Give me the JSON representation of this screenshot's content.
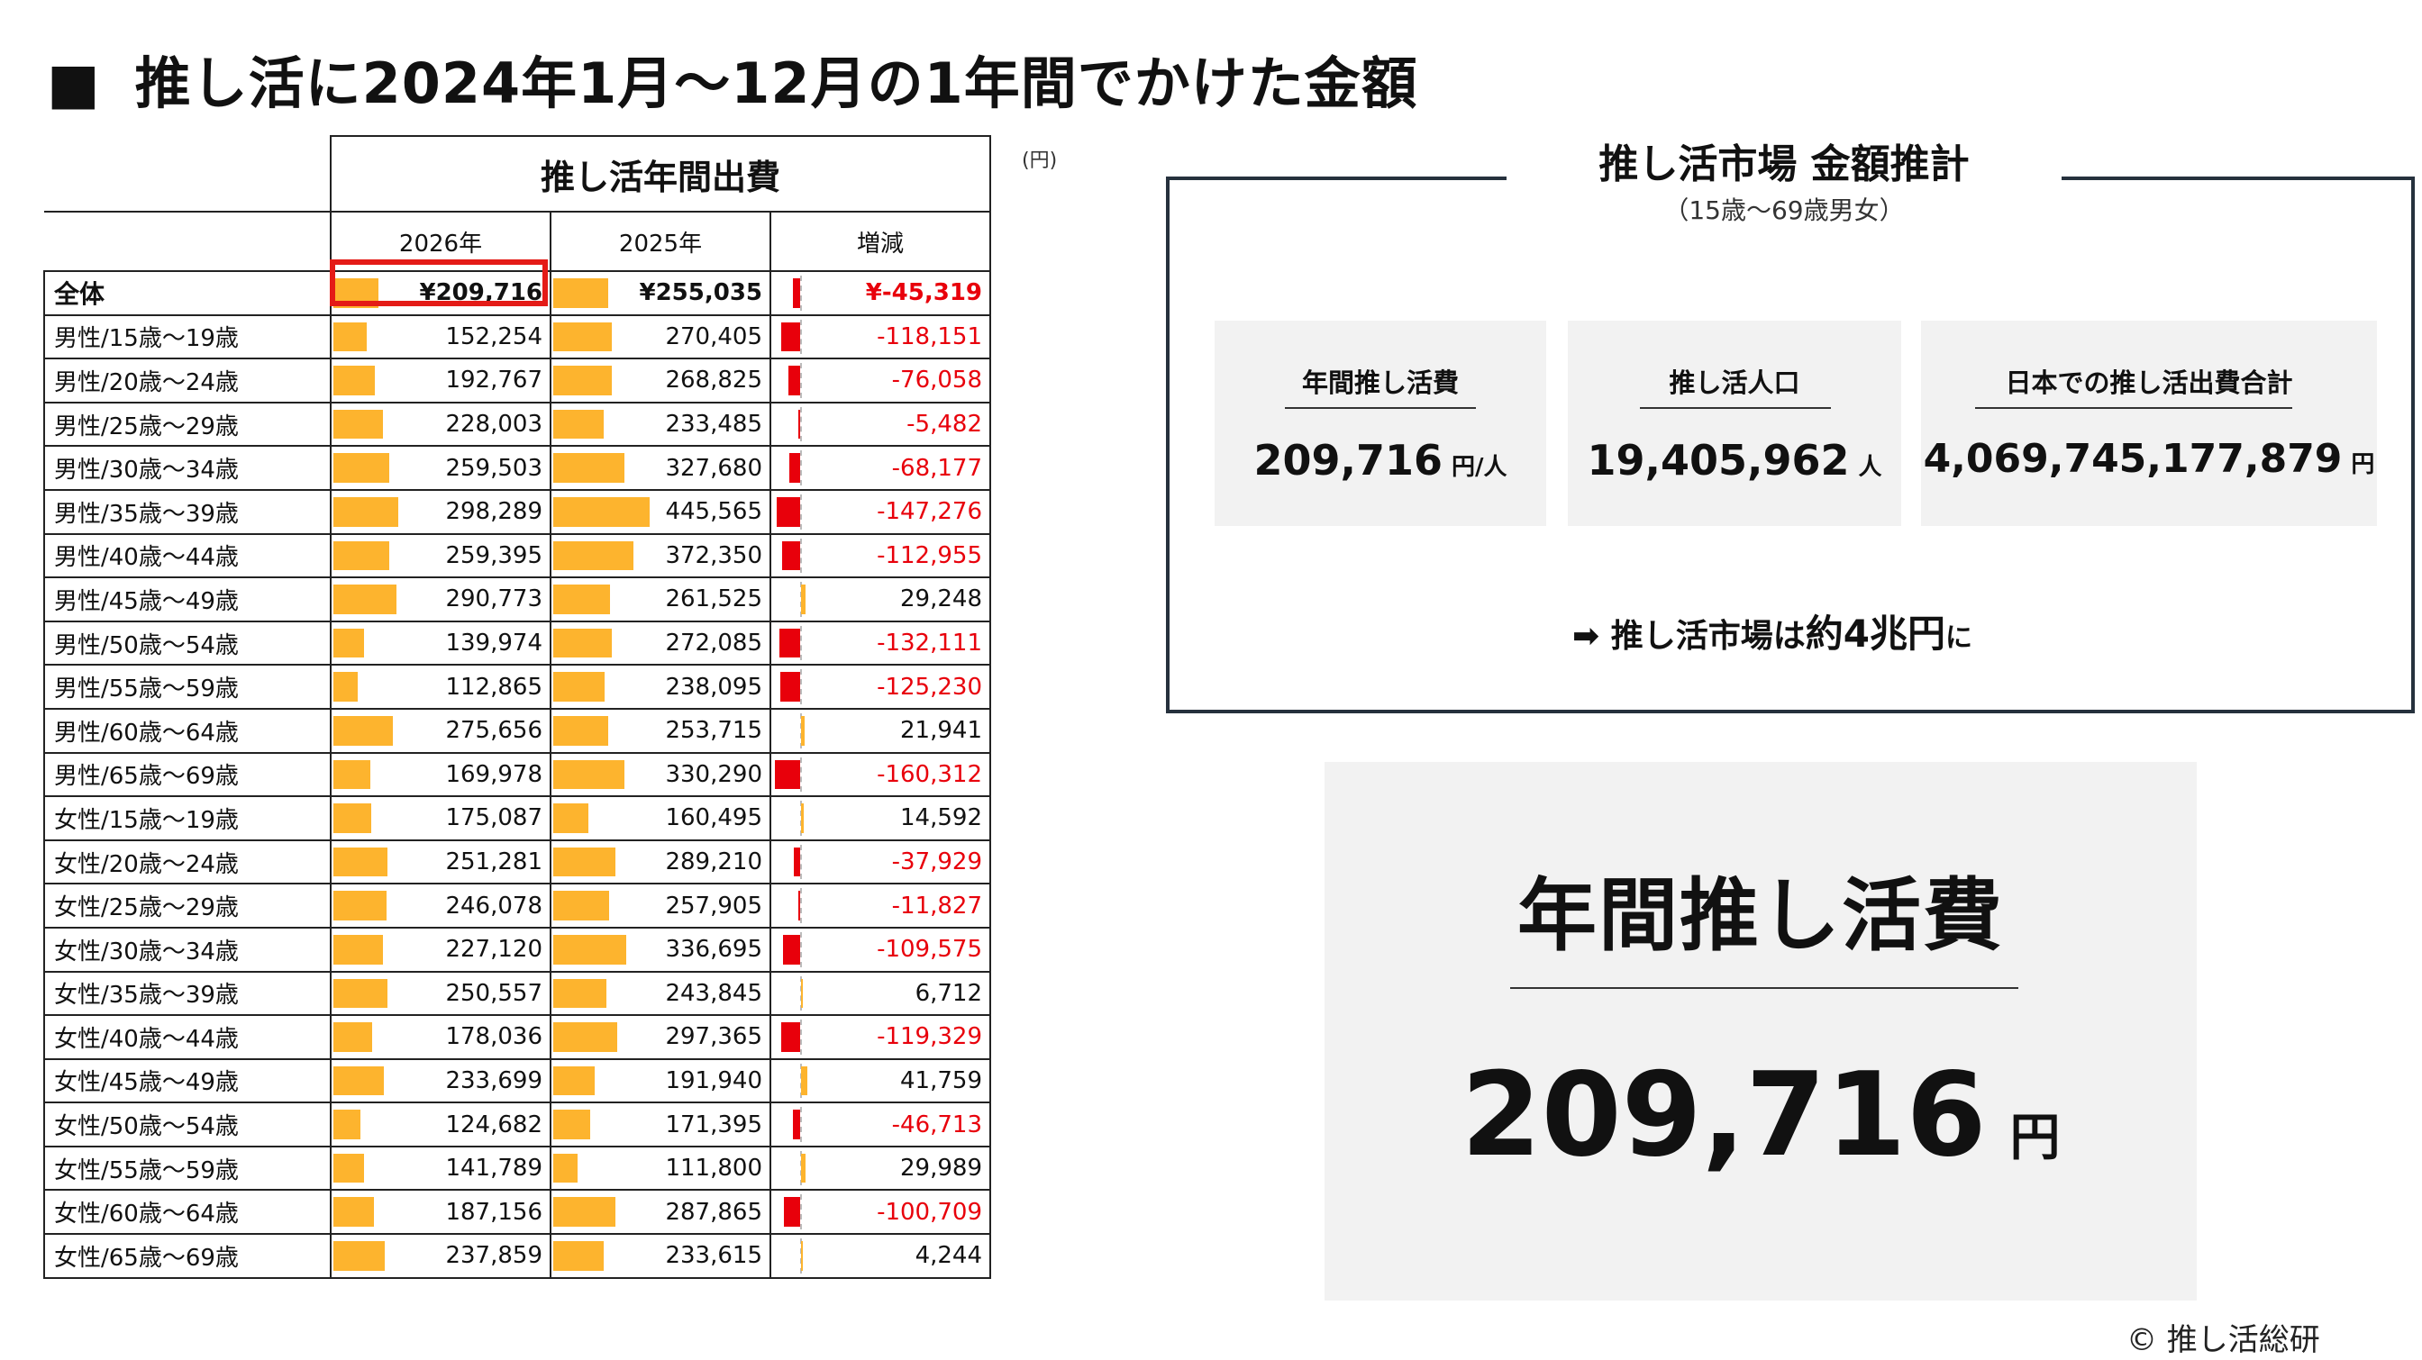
{
  "title": "推し活に2024年1月～12月の1年間でかけた金額",
  "title_marker": "■",
  "table": {
    "main_header": "推し活年間出費",
    "unit": "(円)",
    "columns": [
      "2026年",
      "2025年",
      "増減"
    ],
    "rows": [
      {
        "label": "全体",
        "y2026": 209716,
        "y2025": 255035,
        "diff": -45319,
        "y2026_text": "¥209,716",
        "y2025_text": "¥255,035",
        "diff_text": "¥-45,319"
      },
      {
        "label": "男性/15歳～19歳",
        "y2026": 152254,
        "y2025": 270405,
        "diff": -118151,
        "y2026_text": "152,254",
        "y2025_text": "270,405",
        "diff_text": "-118,151"
      },
      {
        "label": "男性/20歳～24歳",
        "y2026": 192767,
        "y2025": 268825,
        "diff": -76058,
        "y2026_text": "192,767",
        "y2025_text": "268,825",
        "diff_text": "-76,058"
      },
      {
        "label": "男性/25歳～29歳",
        "y2026": 228003,
        "y2025": 233485,
        "diff": -5482,
        "y2026_text": "228,003",
        "y2025_text": "233,485",
        "diff_text": "-5,482"
      },
      {
        "label": "男性/30歳～34歳",
        "y2026": 259503,
        "y2025": 327680,
        "diff": -68177,
        "y2026_text": "259,503",
        "y2025_text": "327,680",
        "diff_text": "-68,177"
      },
      {
        "label": "男性/35歳～39歳",
        "y2026": 298289,
        "y2025": 445565,
        "diff": -147276,
        "y2026_text": "298,289",
        "y2025_text": "445,565",
        "diff_text": "-147,276"
      },
      {
        "label": "男性/40歳～44歳",
        "y2026": 259395,
        "y2025": 372350,
        "diff": -112955,
        "y2026_text": "259,395",
        "y2025_text": "372,350",
        "diff_text": "-112,955"
      },
      {
        "label": "男性/45歳～49歳",
        "y2026": 290773,
        "y2025": 261525,
        "diff": 29248,
        "y2026_text": "290,773",
        "y2025_text": "261,525",
        "diff_text": "29,248"
      },
      {
        "label": "男性/50歳～54歳",
        "y2026": 139974,
        "y2025": 272085,
        "diff": -132111,
        "y2026_text": "139,974",
        "y2025_text": "272,085",
        "diff_text": "-132,111"
      },
      {
        "label": "男性/55歳～59歳",
        "y2026": 112865,
        "y2025": 238095,
        "diff": -125230,
        "y2026_text": "112,865",
        "y2025_text": "238,095",
        "diff_text": "-125,230"
      },
      {
        "label": "男性/60歳～64歳",
        "y2026": 275656,
        "y2025": 253715,
        "diff": 21941,
        "y2026_text": "275,656",
        "y2025_text": "253,715",
        "diff_text": "21,941"
      },
      {
        "label": "男性/65歳～69歳",
        "y2026": 169978,
        "y2025": 330290,
        "diff": -160312,
        "y2026_text": "169,978",
        "y2025_text": "330,290",
        "diff_text": "-160,312"
      },
      {
        "label": "女性/15歳～19歳",
        "y2026": 175087,
        "y2025": 160495,
        "diff": 14592,
        "y2026_text": "175,087",
        "y2025_text": "160,495",
        "diff_text": "14,592"
      },
      {
        "label": "女性/20歳～24歳",
        "y2026": 251281,
        "y2025": 289210,
        "diff": -37929,
        "y2026_text": "251,281",
        "y2025_text": "289,210",
        "diff_text": "-37,929"
      },
      {
        "label": "女性/25歳～29歳",
        "y2026": 246078,
        "y2025": 257905,
        "diff": -11827,
        "y2026_text": "246,078",
        "y2025_text": "257,905",
        "diff_text": "-11,827"
      },
      {
        "label": "女性/30歳～34歳",
        "y2026": 227120,
        "y2025": 336695,
        "diff": -109575,
        "y2026_text": "227,120",
        "y2025_text": "336,695",
        "diff_text": "-109,575"
      },
      {
        "label": "女性/35歳～39歳",
        "y2026": 250557,
        "y2025": 243845,
        "diff": 6712,
        "y2026_text": "250,557",
        "y2025_text": "243,845",
        "diff_text": "6,712"
      },
      {
        "label": "女性/40歳～44歳",
        "y2026": 178036,
        "y2025": 297365,
        "diff": -119329,
        "y2026_text": "178,036",
        "y2025_text": "297,365",
        "diff_text": "-119,329"
      },
      {
        "label": "女性/45歳～49歳",
        "y2026": 233699,
        "y2025": 191940,
        "diff": 41759,
        "y2026_text": "233,699",
        "y2025_text": "191,940",
        "diff_text": "41,759"
      },
      {
        "label": "女性/50歳～54歳",
        "y2026": 124682,
        "y2025": 171395,
        "diff": -46713,
        "y2026_text": "124,682",
        "y2025_text": "171,395",
        "diff_text": "-46,713"
      },
      {
        "label": "女性/55歳～59歳",
        "y2026": 141789,
        "y2025": 111800,
        "diff": 29989,
        "y2026_text": "141,789",
        "y2025_text": "111,800",
        "diff_text": "29,989"
      },
      {
        "label": "女性/60歳～64歳",
        "y2026": 187156,
        "y2025": 287865,
        "diff": -100709,
        "y2026_text": "187,156",
        "y2025_text": "287,865",
        "diff_text": "-100,709"
      },
      {
        "label": "女性/65歳～69歳",
        "y2026": 237859,
        "y2025": 233615,
        "diff": 4244,
        "y2026_text": "237,859",
        "y2025_text": "233,615",
        "diff_text": "4,244"
      }
    ],
    "bar_max": 500000,
    "diff_max": 160312
  },
  "market": {
    "title": "推し活市場 金額推計",
    "subtitle": "（15歳～69歳男女）",
    "cards": [
      {
        "label": "年間推し活費",
        "value": "209,716",
        "unit": "円/人"
      },
      {
        "label": "推し活人口",
        "value": "19,405,962",
        "unit": "人"
      },
      {
        "label": "日本での推し活出費合計",
        "value": "4,069,745,177,879",
        "unit": "円"
      }
    ],
    "note_arrow": "➡",
    "note_pre": "推し活市場は",
    "note_big": "約4兆円",
    "note_post": "に"
  },
  "highlight": {
    "title": "年間推し活費",
    "value": "209,716",
    "unit": "円"
  },
  "copyright": "© 推し活総研",
  "colors": {
    "bar": "#fdb42e",
    "negative": "#e8000b",
    "highlight_border": "#e41b17",
    "panel_bg": "#f2f2f2",
    "market_border": "#26313d"
  }
}
